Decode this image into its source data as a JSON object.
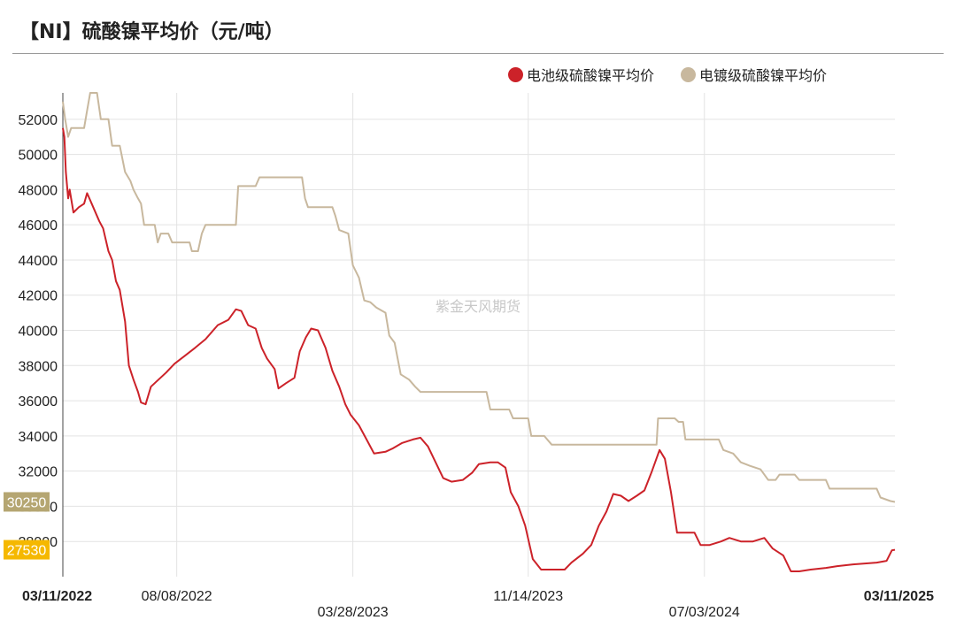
{
  "title": "【NI】硫酸镍平均价（元/吨）",
  "watermark": "紫金天风期货",
  "chart_data": {
    "type": "line",
    "ylim": [
      26000,
      53500
    ],
    "yticks": [
      28000,
      30000,
      32000,
      34000,
      36000,
      38000,
      40000,
      42000,
      44000,
      46000,
      48000,
      50000,
      52000
    ],
    "x_start": "03/11/2022",
    "x_end": "03/11/2025",
    "xticks": [
      "03/11/2022",
      "08/08/2022",
      "03/28/2023",
      "11/14/2023",
      "07/03/2024",
      "03/11/2025"
    ],
    "grid": true,
    "legend_position": "top-right",
    "series": [
      {
        "name": "电池级硫酸镍平均价",
        "color": "#cc2229",
        "last_label": "27530",
        "flag_color": "#f5b800",
        "points": [
          [
            "03/11/2022",
            51500
          ],
          [
            "03/13/2022",
            51000
          ],
          [
            "03/15/2022",
            49000
          ],
          [
            "03/18/2022",
            47500
          ],
          [
            "03/20/2022",
            48000
          ],
          [
            "03/25/2022",
            46700
          ],
          [
            "04/01/2022",
            47000
          ],
          [
            "04/08/2022",
            47200
          ],
          [
            "04/12/2022",
            47800
          ],
          [
            "04/18/2022",
            47200
          ],
          [
            "04/28/2022",
            46200
          ],
          [
            "05/03/2022",
            45800
          ],
          [
            "05/10/2022",
            44500
          ],
          [
            "05/15/2022",
            44000
          ],
          [
            "05/20/2022",
            42800
          ],
          [
            "05/25/2022",
            42300
          ],
          [
            "06/01/2022",
            40500
          ],
          [
            "06/06/2022",
            38000
          ],
          [
            "06/12/2022",
            37200
          ],
          [
            "06/18/2022",
            36500
          ],
          [
            "06/22/2022",
            35900
          ],
          [
            "06/28/2022",
            35800
          ],
          [
            "07/05/2022",
            36800
          ],
          [
            "07/15/2022",
            37200
          ],
          [
            "07/25/2022",
            37600
          ],
          [
            "08/05/2022",
            38100
          ],
          [
            "08/20/2022",
            38600
          ],
          [
            "09/01/2022",
            39000
          ],
          [
            "09/15/2022",
            39500
          ],
          [
            "10/01/2022",
            40300
          ],
          [
            "10/15/2022",
            40600
          ],
          [
            "10/25/2022",
            41200
          ],
          [
            "11/01/2022",
            41100
          ],
          [
            "11/10/2022",
            40300
          ],
          [
            "11/20/2022",
            40100
          ],
          [
            "11/28/2022",
            39000
          ],
          [
            "12/05/2022",
            38400
          ],
          [
            "12/15/2022",
            37800
          ],
          [
            "12/20/2022",
            36700
          ],
          [
            "12/30/2022",
            37000
          ],
          [
            "01/10/2023",
            37300
          ],
          [
            "01/17/2023",
            38800
          ],
          [
            "01/25/2023",
            39600
          ],
          [
            "02/01/2023",
            40100
          ],
          [
            "02/10/2023",
            40000
          ],
          [
            "02/20/2023",
            39000
          ],
          [
            "03/01/2023",
            37700
          ],
          [
            "03/10/2023",
            36800
          ],
          [
            "03/18/2023",
            35800
          ],
          [
            "03/25/2023",
            35200
          ],
          [
            "04/05/2023",
            34600
          ],
          [
            "04/15/2023",
            33800
          ],
          [
            "04/25/2023",
            33000
          ],
          [
            "05/10/2023",
            33100
          ],
          [
            "05/20/2023",
            33300
          ],
          [
            "06/01/2023",
            33600
          ],
          [
            "06/15/2023",
            33800
          ],
          [
            "06/25/2023",
            33900
          ],
          [
            "07/05/2023",
            33400
          ],
          [
            "07/15/2023",
            32500
          ],
          [
            "07/25/2023",
            31600
          ],
          [
            "08/05/2023",
            31400
          ],
          [
            "08/20/2023",
            31500
          ],
          [
            "09/01/2023",
            31900
          ],
          [
            "09/10/2023",
            32400
          ],
          [
            "09/25/2023",
            32500
          ],
          [
            "10/05/2023",
            32500
          ],
          [
            "10/15/2023",
            32200
          ],
          [
            "10/22/2023",
            30800
          ],
          [
            "11/01/2023",
            30000
          ],
          [
            "11/10/2023",
            28900
          ],
          [
            "11/20/2023",
            27000
          ],
          [
            "12/01/2023",
            26400
          ],
          [
            "12/15/2023",
            26400
          ],
          [
            "01/01/2024",
            26400
          ],
          [
            "01/10/2024",
            26800
          ],
          [
            "01/25/2024",
            27300
          ],
          [
            "02/05/2024",
            27800
          ],
          [
            "02/15/2024",
            28900
          ],
          [
            "02/25/2024",
            29700
          ],
          [
            "03/05/2024",
            30700
          ],
          [
            "03/15/2024",
            30600
          ],
          [
            "03/25/2024",
            30300
          ],
          [
            "04/05/2024",
            30600
          ],
          [
            "04/15/2024",
            30900
          ],
          [
            "04/25/2024",
            32000
          ],
          [
            "05/05/2024",
            33200
          ],
          [
            "05/12/2024",
            32700
          ],
          [
            "05/20/2024",
            30800
          ],
          [
            "05/28/2024",
            28500
          ],
          [
            "06/10/2024",
            28500
          ],
          [
            "06/20/2024",
            28500
          ],
          [
            "06/28/2024",
            27800
          ],
          [
            "07/10/2024",
            27800
          ],
          [
            "07/25/2024",
            28000
          ],
          [
            "08/05/2024",
            28200
          ],
          [
            "08/20/2024",
            28000
          ],
          [
            "09/05/2024",
            28000
          ],
          [
            "09/20/2024",
            28200
          ],
          [
            "10/01/2024",
            27600
          ],
          [
            "10/15/2024",
            27200
          ],
          [
            "10/25/2024",
            26300
          ],
          [
            "11/05/2024",
            26300
          ],
          [
            "11/20/2024",
            26400
          ],
          [
            "12/10/2024",
            26500
          ],
          [
            "12/25/2024",
            26600
          ],
          [
            "01/15/2025",
            26700
          ],
          [
            "02/15/2025",
            26800
          ],
          [
            "02/28/2025",
            26900
          ],
          [
            "03/07/2025",
            27500
          ],
          [
            "03/11/2025",
            27530
          ]
        ]
      },
      {
        "name": "电镀级硫酸镍平均价",
        "color": "#c8b89e",
        "last_label": "30250",
        "flag_color": "#b5a672",
        "points": [
          [
            "03/11/2022",
            53000
          ],
          [
            "03/14/2022",
            52000
          ],
          [
            "03/18/2022",
            51000
          ],
          [
            "03/22/2022",
            51500
          ],
          [
            "04/08/2022",
            51500
          ],
          [
            "04/12/2022",
            52500
          ],
          [
            "04/16/2022",
            53500
          ],
          [
            "04/25/2022",
            53500
          ],
          [
            "04/30/2022",
            52000
          ],
          [
            "05/10/2022",
            52000
          ],
          [
            "05/15/2022",
            50500
          ],
          [
            "05/25/2022",
            50500
          ],
          [
            "06/01/2022",
            49000
          ],
          [
            "06/08/2022",
            48500
          ],
          [
            "06/12/2022",
            48000
          ],
          [
            "06/18/2022",
            47500
          ],
          [
            "06/22/2022",
            47200
          ],
          [
            "06/26/2022",
            46000
          ],
          [
            "07/10/2022",
            46000
          ],
          [
            "07/14/2022",
            45000
          ],
          [
            "07/18/2022",
            45500
          ],
          [
            "07/28/2022",
            45500
          ],
          [
            "08/02/2022",
            45000
          ],
          [
            "08/25/2022",
            45000
          ],
          [
            "08/28/2022",
            44500
          ],
          [
            "09/05/2022",
            44500
          ],
          [
            "09/10/2022",
            45500
          ],
          [
            "09/15/2022",
            46000
          ],
          [
            "10/15/2022",
            46000
          ],
          [
            "10/25/2022",
            46000
          ],
          [
            "10/28/2022",
            48200
          ],
          [
            "11/20/2022",
            48200
          ],
          [
            "11/25/2022",
            48700
          ],
          [
            "01/20/2023",
            48700
          ],
          [
            "01/24/2023",
            47500
          ],
          [
            "01/28/2023",
            47000
          ],
          [
            "03/01/2023",
            47000
          ],
          [
            "03/05/2023",
            46500
          ],
          [
            "03/10/2023",
            45700
          ],
          [
            "03/22/2023",
            45500
          ],
          [
            "03/28/2023",
            43700
          ],
          [
            "04/05/2023",
            43000
          ],
          [
            "04/12/2023",
            41700
          ],
          [
            "04/20/2023",
            41600
          ],
          [
            "04/28/2023",
            41300
          ],
          [
            "05/10/2023",
            41000
          ],
          [
            "05/15/2023",
            39700
          ],
          [
            "05/22/2023",
            39300
          ],
          [
            "05/30/2023",
            37500
          ],
          [
            "06/10/2023",
            37200
          ],
          [
            "06/18/2023",
            36800
          ],
          [
            "06/25/2023",
            36500
          ],
          [
            "07/15/2023",
            36500
          ],
          [
            "09/20/2023",
            36500
          ],
          [
            "09/25/2023",
            35500
          ],
          [
            "10/20/2023",
            35500
          ],
          [
            "10/25/2023",
            35000
          ],
          [
            "11/14/2023",
            35000
          ],
          [
            "11/18/2023",
            34000
          ],
          [
            "12/05/2023",
            34000
          ],
          [
            "12/15/2023",
            33500
          ],
          [
            "05/01/2024",
            33500
          ],
          [
            "05/03/2024",
            35000
          ],
          [
            "05/25/2024",
            35000
          ],
          [
            "05/30/2024",
            34800
          ],
          [
            "06/05/2024",
            34800
          ],
          [
            "06/08/2024",
            33800
          ],
          [
            "07/15/2024",
            33800
          ],
          [
            "07/22/2024",
            33800
          ],
          [
            "07/28/2024",
            33200
          ],
          [
            "08/10/2024",
            33000
          ],
          [
            "08/20/2024",
            32500
          ],
          [
            "09/01/2024",
            32300
          ],
          [
            "09/15/2024",
            32100
          ],
          [
            "09/25/2024",
            31500
          ],
          [
            "10/05/2024",
            31500
          ],
          [
            "10/10/2024",
            31800
          ],
          [
            "10/30/2024",
            31800
          ],
          [
            "11/05/2024",
            31500
          ],
          [
            "12/10/2024",
            31500
          ],
          [
            "12/15/2024",
            31000
          ],
          [
            "02/15/2025",
            31000
          ],
          [
            "02/20/2025",
            30500
          ],
          [
            "03/05/2025",
            30300
          ],
          [
            "03/11/2025",
            30250
          ]
        ]
      }
    ]
  }
}
